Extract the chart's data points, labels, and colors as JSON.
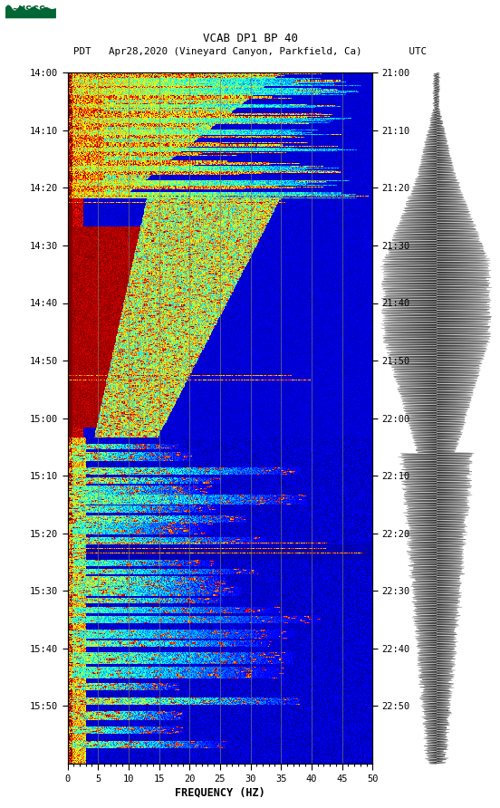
{
  "title_line1": "VCAB DP1 BP 40",
  "title_line2": "PDT   Apr28,2020 (Vineyard Canyon, Parkfield, Ca)        UTC",
  "xlabel": "FREQUENCY (HZ)",
  "freq_min": 0,
  "freq_max": 50,
  "pdt_ticks": [
    "14:00",
    "14:10",
    "14:20",
    "14:30",
    "14:40",
    "14:50",
    "15:00",
    "15:10",
    "15:20",
    "15:30",
    "15:40",
    "15:50"
  ],
  "utc_ticks": [
    "21:00",
    "21:10",
    "21:20",
    "21:30",
    "21:40",
    "21:50",
    "22:00",
    "22:10",
    "22:20",
    "22:30",
    "22:40",
    "22:50"
  ],
  "freq_ticks": [
    0,
    5,
    10,
    15,
    20,
    25,
    30,
    35,
    40,
    45,
    50
  ],
  "vertical_lines_freq": [
    5,
    10,
    15,
    20,
    25,
    30,
    35,
    40,
    45
  ],
  "background_color": "#ffffff",
  "colormap": "jet",
  "fig_width": 5.52,
  "fig_height": 8.92,
  "usgs_color": "#006633",
  "font_family": "monospace",
  "n_time": 720,
  "n_freq": 500
}
